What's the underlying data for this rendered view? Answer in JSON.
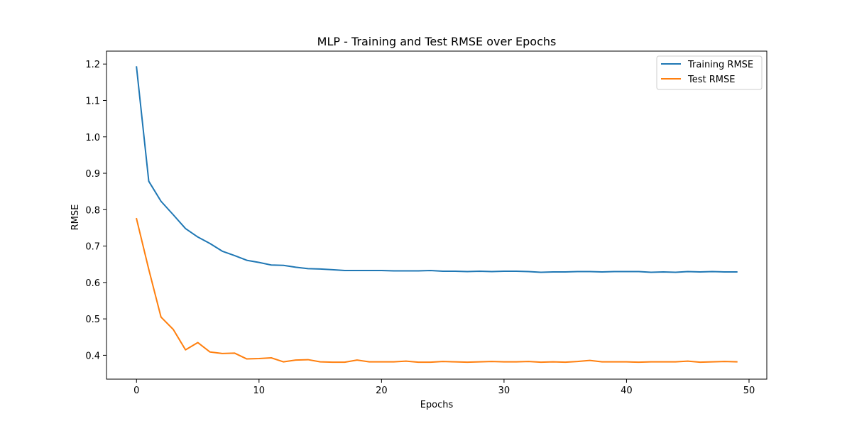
{
  "chart_data": {
    "type": "line",
    "title": "MLP - Training and Test RMSE over Epochs",
    "xlabel": "Epochs",
    "ylabel": "RMSE",
    "xlim": [
      -2.45,
      51.45
    ],
    "ylim": [
      0.3345,
      1.2355
    ],
    "xticks": [
      0,
      10,
      20,
      30,
      40,
      50
    ],
    "yticks": [
      0.4,
      0.5,
      0.6,
      0.7,
      0.8,
      0.9,
      1.0,
      1.1,
      1.2
    ],
    "grid": false,
    "legend_position": "upper right",
    "x": [
      0,
      1,
      2,
      3,
      4,
      5,
      6,
      7,
      8,
      9,
      10,
      11,
      12,
      13,
      14,
      15,
      16,
      17,
      18,
      19,
      20,
      21,
      22,
      23,
      24,
      25,
      26,
      27,
      28,
      29,
      30,
      31,
      32,
      33,
      34,
      35,
      36,
      37,
      38,
      39,
      40,
      41,
      42,
      43,
      44,
      45,
      46,
      47,
      48,
      49
    ],
    "series": [
      {
        "name": "Training RMSE",
        "color": "#1f77b4",
        "values": [
          1.192,
          0.878,
          0.823,
          0.786,
          0.748,
          0.725,
          0.707,
          0.686,
          0.674,
          0.661,
          0.655,
          0.648,
          0.647,
          0.642,
          0.638,
          0.637,
          0.635,
          0.633,
          0.633,
          0.633,
          0.633,
          0.632,
          0.632,
          0.632,
          0.633,
          0.631,
          0.631,
          0.63,
          0.631,
          0.63,
          0.631,
          0.631,
          0.63,
          0.628,
          0.629,
          0.629,
          0.63,
          0.63,
          0.629,
          0.63,
          0.63,
          0.63,
          0.628,
          0.629,
          0.628,
          0.63,
          0.629,
          0.63,
          0.629,
          0.629
        ]
      },
      {
        "name": "Test RMSE",
        "color": "#ff7f0e",
        "values": [
          0.775,
          0.636,
          0.505,
          0.471,
          0.415,
          0.435,
          0.409,
          0.405,
          0.406,
          0.39,
          0.391,
          0.393,
          0.382,
          0.387,
          0.388,
          0.382,
          0.381,
          0.381,
          0.387,
          0.382,
          0.382,
          0.382,
          0.384,
          0.381,
          0.381,
          0.383,
          0.382,
          0.381,
          0.382,
          0.383,
          0.382,
          0.382,
          0.383,
          0.381,
          0.382,
          0.381,
          0.383,
          0.386,
          0.382,
          0.382,
          0.382,
          0.381,
          0.382,
          0.382,
          0.382,
          0.384,
          0.381,
          0.382,
          0.383,
          0.382
        ]
      }
    ]
  }
}
